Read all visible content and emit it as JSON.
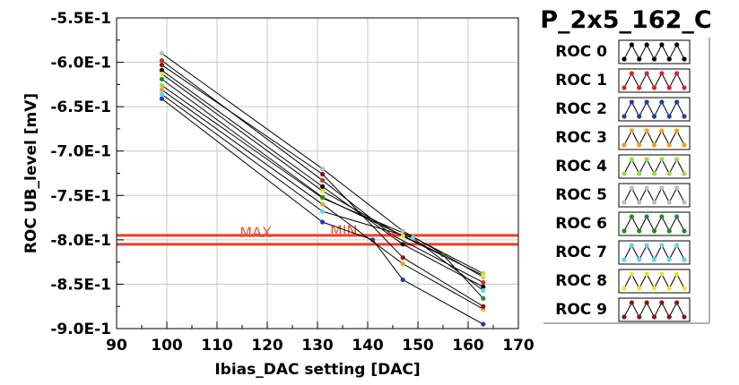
{
  "panel_title": "P_2x5_162_C",
  "colors": {
    "limit_line": "#f03c2a",
    "annotation": "#e8553a",
    "grid": "#c8c8c8",
    "connector": "#000000"
  },
  "chart_data": {
    "type": "scatter",
    "title": "",
    "xlabel": "Ibias_DAC setting [DAC]",
    "ylabel": "ROC UB_level [mV]",
    "xlim": [
      90,
      170
    ],
    "ylim": [
      -0.9,
      -0.55
    ],
    "x_ticks": [
      90,
      100,
      110,
      120,
      130,
      140,
      150,
      160,
      170
    ],
    "x_tick_labels": [
      "90",
      "100",
      "110",
      "120",
      "130",
      "140",
      "150",
      "160",
      "170"
    ],
    "y_ticks": [
      -0.55,
      -0.6,
      -0.65,
      -0.7,
      -0.75,
      -0.8,
      -0.85,
      -0.9
    ],
    "y_tick_labels": [
      "-5.5E-1",
      "-6.0E-1",
      "-6.5E-1",
      "-7.0E-1",
      "-7.5E-1",
      "-8.0E-1",
      "-8.5E-1",
      "-9.0E-1"
    ],
    "grid": true,
    "legend_position": "right",
    "limit_lines": [
      {
        "label": "MAX",
        "y": -0.795
      },
      {
        "label": "MIN",
        "y": -0.805
      }
    ],
    "series": [
      {
        "name": "ROC 0",
        "color": "#000000",
        "x": [
          99,
          131,
          147,
          163
        ],
        "y": [
          -0.609,
          -0.74,
          -0.805,
          -0.853
        ]
      },
      {
        "name": "ROC 1",
        "color": "#d42a1e",
        "x": [
          99,
          131,
          145,
          163
        ],
        "y": [
          -0.598,
          -0.733,
          -0.795,
          -0.848
        ]
      },
      {
        "name": "ROC 2",
        "color": "#1a3fb0",
        "x": [
          99,
          131,
          141,
          147,
          163
        ],
        "y": [
          -0.641,
          -0.78,
          -0.8,
          -0.845,
          -0.895
        ]
      },
      {
        "name": "ROC 3",
        "color": "#f0a020",
        "x": [
          99,
          131,
          147,
          163
        ],
        "y": [
          -0.631,
          -0.76,
          -0.827,
          -0.878
        ]
      },
      {
        "name": "ROC 4",
        "color": "#8ee03c",
        "x": [
          99,
          131,
          149,
          163
        ],
        "y": [
          -0.626,
          -0.753,
          -0.797,
          -0.838
        ]
      },
      {
        "name": "ROC 5",
        "color": "#bdbdbd",
        "x": [
          99,
          131,
          147,
          163
        ],
        "y": [
          -0.59,
          -0.72,
          -0.79,
          -0.842
        ]
      },
      {
        "name": "ROC 6",
        "color": "#1e8c28",
        "x": [
          99,
          131,
          155,
          163
        ],
        "y": [
          -0.619,
          -0.752,
          -0.817,
          -0.866
        ]
      },
      {
        "name": "ROC 7",
        "color": "#5ad8f0",
        "x": [
          99,
          131,
          149,
          163
        ],
        "y": [
          -0.636,
          -0.768,
          -0.798,
          -0.857
        ]
      },
      {
        "name": "ROC 8",
        "color": "#e2e830",
        "x": [
          99,
          131,
          147,
          163
        ],
        "y": [
          -0.613,
          -0.745,
          -0.796,
          -0.84
        ]
      },
      {
        "name": "ROC 9",
        "color": "#8a1410",
        "x": [
          99,
          131,
          147,
          163
        ],
        "y": [
          -0.603,
          -0.726,
          -0.82,
          -0.875
        ]
      }
    ]
  }
}
